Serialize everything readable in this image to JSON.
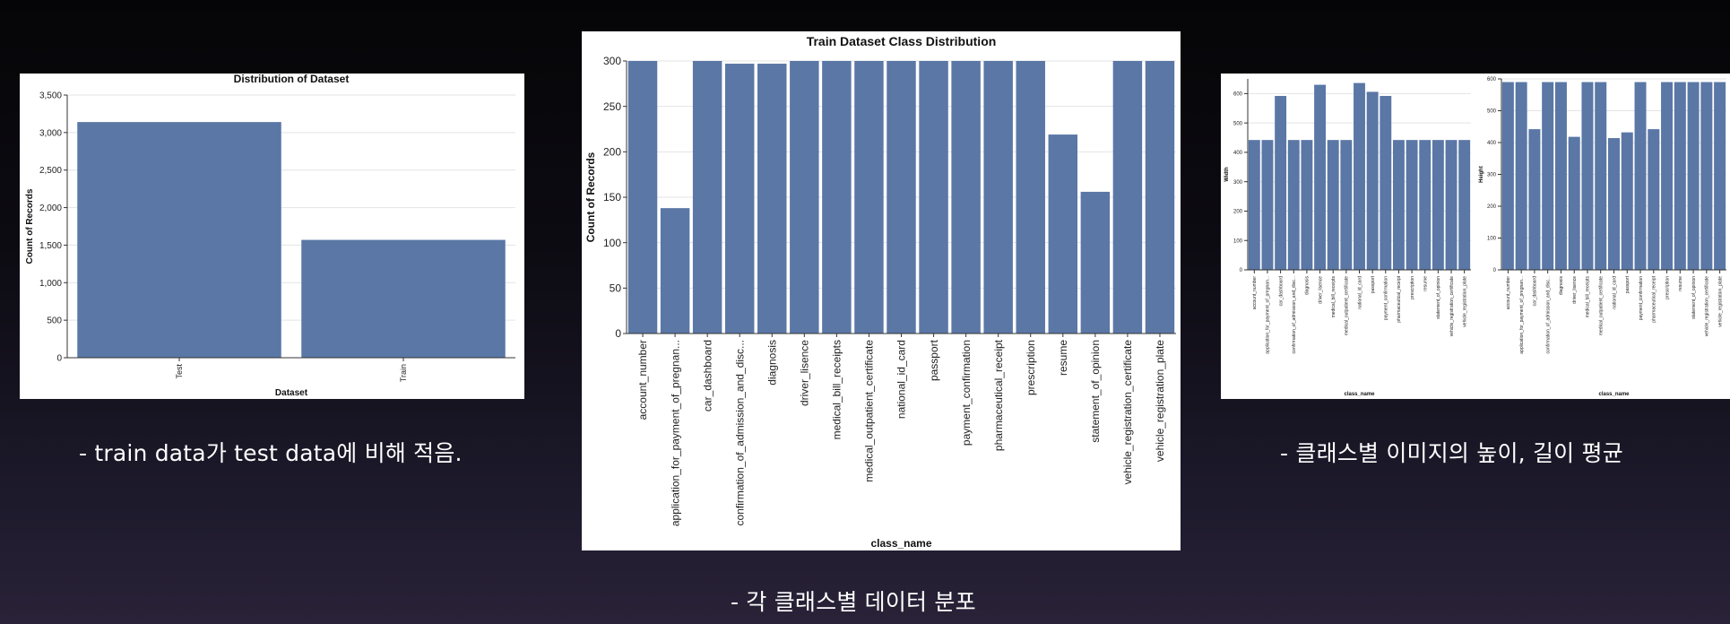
{
  "captions": {
    "dataset": "- train data가 test data에 비해 적음.",
    "class_dist": "- 각 클래스별 데이터 분포",
    "image_size": "- 클래스별 이미지의 높이, 길이 평균"
  },
  "colors": {
    "bar": "#5a77a6",
    "grid": "#e3e3e3",
    "axis": "#333333",
    "background": "#ffffff"
  },
  "chart_data": [
    {
      "id": "dataset",
      "type": "bar",
      "title": "Distribution of Dataset",
      "xlabel": "Dataset",
      "ylabel": "Count of Records",
      "categories": [
        "Test",
        "Train"
      ],
      "values": [
        3140,
        1570
      ],
      "ylim": [
        0,
        3500
      ],
      "yticks": [
        0,
        500,
        1000,
        1500,
        2000,
        2500,
        3000,
        3500
      ],
      "ytick_labels": [
        "0",
        "500",
        "1,000",
        "1,500",
        "2,000",
        "2,500",
        "3,000",
        "3,500"
      ],
      "grid": true
    },
    {
      "id": "train_classes",
      "type": "bar",
      "title": "Train Dataset Class Distribution",
      "xlabel": "class_name",
      "ylabel": "Count of Records",
      "categories": [
        "account_number",
        "application_for_payment_of_pregnan...",
        "car_dashboard",
        "confirmation_of_admission_and_disc...",
        "diagnosis",
        "driver_lisence",
        "medical_bill_receipts",
        "medical_outpatient_certificate",
        "national_id_card",
        "passport",
        "payment_confirmation",
        "pharmaceutical_receipt",
        "prescription",
        "resume",
        "statement_of_opinion",
        "vehicle_registration_certificate",
        "vehicle_registration_plate"
      ],
      "values": [
        300,
        138,
        300,
        297,
        297,
        300,
        300,
        300,
        300,
        300,
        300,
        300,
        300,
        219,
        156,
        300,
        300
      ],
      "ylim": [
        0,
        300
      ],
      "yticks": [
        0,
        50,
        100,
        150,
        200,
        250,
        300
      ],
      "ytick_labels": [
        "0",
        "50",
        "100",
        "150",
        "200",
        "250",
        "300"
      ],
      "grid": true
    },
    {
      "id": "width_by_class",
      "type": "bar",
      "title": "",
      "xlabel": "class_name",
      "ylabel": "Width",
      "categories": [
        "account_number",
        "application_for_payment_of_pregnan...",
        "car_dashboard",
        "confirmation_of_admission_and_disc...",
        "diagnosis",
        "driver_lisence",
        "medical_bill_receipts",
        "medical_outpatient_certificate",
        "national_id_card",
        "passport",
        "payment_confirmation",
        "pharmaceutical_receipt",
        "prescription",
        "resume",
        "statement_of_opinion",
        "vehicle_registration_certificate",
        "vehicle_registration_plate"
      ],
      "values": [
        442,
        442,
        592,
        442,
        442,
        630,
        442,
        442,
        636,
        606,
        592,
        442,
        442,
        442,
        442,
        442,
        442
      ],
      "ylim": [
        0,
        650
      ],
      "yticks": [
        0,
        100,
        200,
        300,
        400,
        500,
        600
      ],
      "ytick_labels": [
        "0",
        "100",
        "200",
        "300",
        "400",
        "500",
        "600"
      ],
      "grid": true
    },
    {
      "id": "height_by_class",
      "type": "bar",
      "title": "",
      "xlabel": "class_name",
      "ylabel": "Height",
      "categories": [
        "account_number",
        "application_for_payment_of_pregnan...",
        "car_dashboard",
        "confirmation_of_admission_and_disc...",
        "diagnosis",
        "driver_lisence",
        "medical_bill_receipts",
        "medical_outpatient_certificate",
        "national_id_card",
        "passport",
        "payment_confirmation",
        "pharmaceutical_receipt",
        "prescription",
        "resume",
        "statement_of_opinion",
        "vehicle_registration_certificate",
        "vehicle_registration_plate"
      ],
      "values": [
        590,
        590,
        442,
        590,
        590,
        418,
        590,
        590,
        414,
        432,
        590,
        442,
        590,
        590,
        590,
        590,
        590
      ],
      "ylim": [
        0,
        600
      ],
      "yticks": [
        0,
        100,
        200,
        300,
        400,
        500,
        600
      ],
      "ytick_labels": [
        "0",
        "100",
        "200",
        "300",
        "400",
        "500",
        "600"
      ],
      "grid": true
    }
  ]
}
